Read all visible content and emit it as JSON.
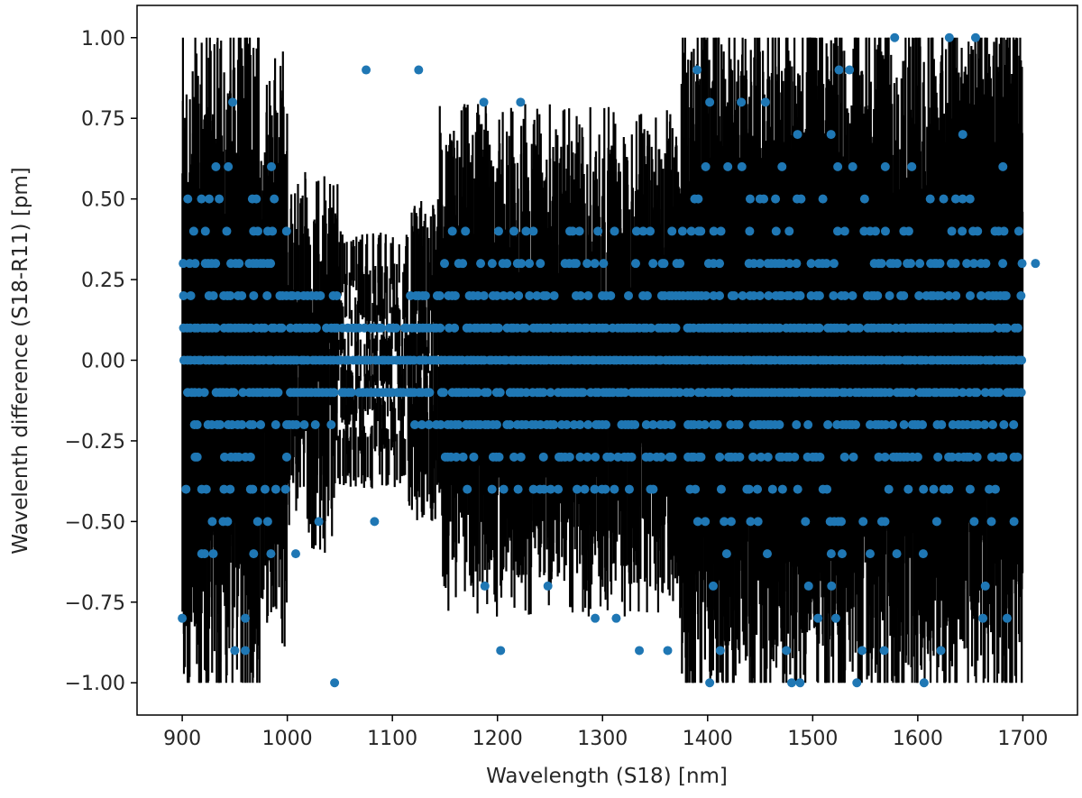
{
  "chart_data": {
    "type": "scatter",
    "xlabel": "Wavelength (S18) [nm]",
    "ylabel": "Wavelenth difference (S18-R11) [pm]",
    "xlim": [
      857,
      1752
    ],
    "ylim": [
      -1.1,
      1.1
    ],
    "x_ticks": [
      900,
      1000,
      1100,
      1200,
      1300,
      1400,
      1500,
      1600,
      1700
    ],
    "x_tick_labels": [
      "900",
      "1000",
      "1100",
      "1200",
      "1300",
      "1400",
      "1500",
      "1600",
      "1700"
    ],
    "y_ticks": [
      1.0,
      0.75,
      0.5,
      0.25,
      0.0,
      -0.25,
      -0.5,
      -0.75,
      -1.0
    ],
    "y_tick_labels": [
      "1.00",
      "0.75",
      "0.50",
      "0.25",
      "0.00",
      "−0.25",
      "−0.50",
      "−0.75",
      "−1.00"
    ],
    "grid": false,
    "marker_color": "#1f77b4",
    "errorbar_color": "#000000",
    "errorbar_bands": [
      {
        "x": [
          900,
          975
        ],
        "yerr_range": [
          0.3,
          0.9
        ]
      },
      {
        "x": [
          975,
          1000
        ],
        "yerr_range": [
          0.3,
          0.7
        ]
      },
      {
        "x": [
          1000,
          1048
        ],
        "yerr_range": [
          0.1,
          0.3
        ]
      },
      {
        "x": [
          1048,
          1115
        ],
        "yerr_range": [
          0.05,
          0.1
        ]
      },
      {
        "x": [
          1115,
          1145
        ],
        "yerr_range": [
          0.1,
          0.2
        ]
      },
      {
        "x": [
          1145,
          1375
        ],
        "yerr_range": [
          0.3,
          0.5
        ]
      },
      {
        "x": [
          1375,
          1700
        ],
        "yerr_range": [
          0.4,
          0.9
        ]
      }
    ],
    "outliers": [
      {
        "x": 900,
        "y": -0.8
      },
      {
        "x": 950,
        "y": -0.9
      },
      {
        "x": 960,
        "y": -0.9
      },
      {
        "x": 960,
        "y": -0.8
      },
      {
        "x": 948,
        "y": 0.8
      },
      {
        "x": 1045,
        "y": -1.0
      },
      {
        "x": 1075,
        "y": 0.9
      },
      {
        "x": 1125,
        "y": 0.9
      },
      {
        "x": 1083,
        "y": -0.5
      },
      {
        "x": 1030,
        "y": -0.5
      },
      {
        "x": 1008,
        "y": -0.6
      },
      {
        "x": 1203,
        "y": -0.9
      },
      {
        "x": 1187,
        "y": 0.8
      },
      {
        "x": 1222,
        "y": 0.8
      },
      {
        "x": 1335,
        "y": -0.9
      },
      {
        "x": 1362,
        "y": -0.9
      },
      {
        "x": 1390,
        "y": 0.9
      },
      {
        "x": 1402,
        "y": 0.8
      },
      {
        "x": 1402,
        "y": -1.0
      },
      {
        "x": 1412,
        "y": -0.9
      },
      {
        "x": 1432,
        "y": 0.8
      },
      {
        "x": 1455,
        "y": 0.8
      },
      {
        "x": 1475,
        "y": -0.9
      },
      {
        "x": 1480,
        "y": -1.0
      },
      {
        "x": 1488,
        "y": -1.0
      },
      {
        "x": 1505,
        "y": -0.8
      },
      {
        "x": 1522,
        "y": -0.8
      },
      {
        "x": 1525,
        "y": 0.9
      },
      {
        "x": 1535,
        "y": 0.9
      },
      {
        "x": 1542,
        "y": -1.0
      },
      {
        "x": 1547,
        "y": -0.9
      },
      {
        "x": 1568,
        "y": -0.9
      },
      {
        "x": 1578,
        "y": 1.0
      },
      {
        "x": 1606,
        "y": -1.0
      },
      {
        "x": 1622,
        "y": -0.9
      },
      {
        "x": 1630,
        "y": 1.0
      },
      {
        "x": 1655,
        "y": 1.0
      },
      {
        "x": 1712,
        "y": 0.3
      },
      {
        "x": 1293,
        "y": -0.8
      },
      {
        "x": 1313,
        "y": -0.8
      },
      {
        "x": 1248,
        "y": -0.7
      },
      {
        "x": 1188,
        "y": -0.7
      },
      {
        "x": 1662,
        "y": -0.8
      },
      {
        "x": 1685,
        "y": -0.8
      }
    ],
    "y_levels": [
      -0.7,
      -0.6,
      -0.5,
      -0.4,
      -0.3,
      -0.2,
      -0.1,
      0.0,
      0.1,
      0.2,
      0.3,
      0.4,
      0.5,
      0.6,
      0.7
    ]
  }
}
